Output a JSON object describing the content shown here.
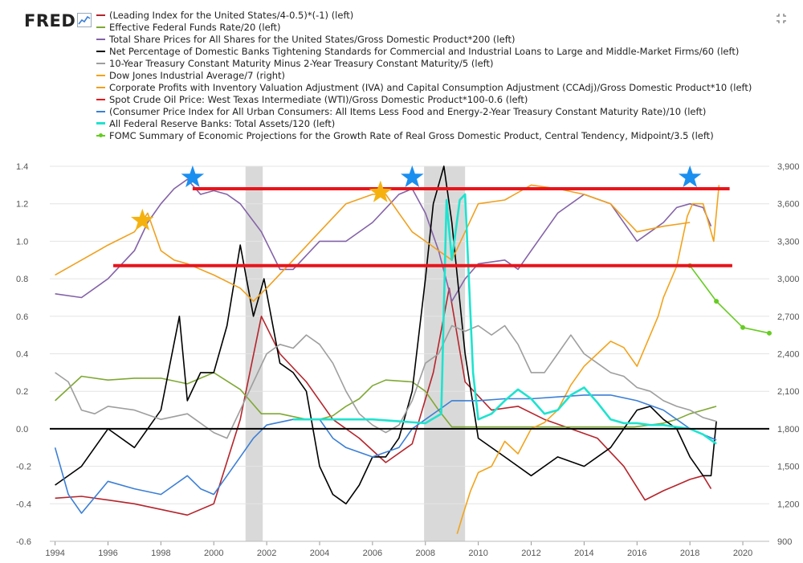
{
  "header": {
    "logo_text": "FRED",
    "logo_icon": "line-chart-icon",
    "fullscreen_icon": "expand-icon"
  },
  "chart_data": {
    "type": "line",
    "x_ticks": [
      "1994",
      "1996",
      "1998",
      "2000",
      "2002",
      "2004",
      "2006",
      "2008",
      "2010",
      "2012",
      "2014",
      "2016",
      "2018",
      "2020"
    ],
    "xlim": [
      1993.8,
      2021.0
    ],
    "left_axis": {
      "ylim": [
        -0.6,
        1.4
      ],
      "ticks": [
        "-0.6",
        "-0.4",
        "-0.2",
        "0.0",
        "0.2",
        "0.4",
        "0.6",
        "0.8",
        "1.0",
        "1.2",
        "1.4"
      ]
    },
    "right_axis": {
      "ylim": [
        900,
        3900
      ],
      "ticks": [
        "900",
        "1,200",
        "1,500",
        "1,800",
        "2,100",
        "2,400",
        "2,700",
        "3,000",
        "3,300",
        "3,600",
        "3,900"
      ]
    },
    "grid": true,
    "legend_position": "top",
    "recessions": [
      [
        2001.2,
        2001.85
      ],
      [
        2007.95,
        2009.5
      ]
    ],
    "annotations": {
      "horizontal_lines": [
        {
          "y": 1.28,
          "x": [
            1999.2,
            2019.5
          ],
          "color": "#e8141b"
        },
        {
          "y": 0.87,
          "x": [
            1996.2,
            2019.6
          ],
          "color": "#e8141b"
        },
        {
          "y": 0.0,
          "x": [
            1993.8,
            2021.0
          ],
          "color": "#000000"
        }
      ],
      "stars": [
        {
          "x": 1997.3,
          "y": 1.11,
          "color": "#f5b20f"
        },
        {
          "x": 1999.2,
          "y": 1.34,
          "color": "#1a8ff0"
        },
        {
          "x": 2006.3,
          "y": 1.26,
          "color": "#f5b20f"
        },
        {
          "x": 2007.5,
          "y": 1.34,
          "color": "#1a8ff0"
        },
        {
          "x": 2018.0,
          "y": 1.34,
          "color": "#1a8ff0"
        }
      ]
    },
    "series": [
      {
        "name": "(Leading Index for the United States/4-0.5)*(-1) (left)",
        "color": "#b5252c",
        "axis": "left",
        "x": [
          1994.0,
          1995.0,
          1996.0,
          1997.0,
          1998.0,
          1999.0,
          2000.0,
          2001.0,
          2001.8,
          2002.5,
          2003.5,
          2004.5,
          2005.5,
          2006.5,
          2007.5,
          2008.3,
          2008.9,
          2009.5,
          2010.5,
          2011.5,
          2012.5,
          2013.5,
          2014.5,
          2015.5,
          2016.3,
          2017.0,
          2017.5,
          2018.0,
          2018.5,
          2018.8
        ],
        "y": [
          -0.37,
          -0.36,
          -0.38,
          -0.4,
          -0.43,
          -0.46,
          -0.4,
          0.05,
          0.6,
          0.4,
          0.25,
          0.05,
          -0.05,
          -0.18,
          -0.08,
          0.3,
          0.75,
          0.25,
          0.1,
          0.12,
          0.05,
          0.0,
          -0.05,
          -0.2,
          -0.38,
          -0.33,
          -0.3,
          -0.27,
          -0.25,
          -0.32
        ]
      },
      {
        "name": "Effective Federal Funds Rate/20 (left)",
        "color": "#7fa833",
        "axis": "left",
        "x": [
          1994.0,
          1995.0,
          1996.0,
          1997.0,
          1998.0,
          1999.0,
          2000.0,
          2001.0,
          2001.8,
          2002.5,
          2003.5,
          2004.0,
          2004.5,
          2005.0,
          2005.5,
          2006.0,
          2006.5,
          2007.5,
          2008.0,
          2008.5,
          2009.0,
          2010.0,
          2012.0,
          2014.0,
          2015.9,
          2016.5,
          2017.0,
          2017.5,
          2018.0,
          2018.5,
          2019.0
        ],
        "y": [
          0.15,
          0.28,
          0.26,
          0.27,
          0.27,
          0.24,
          0.3,
          0.21,
          0.08,
          0.08,
          0.05,
          0.05,
          0.07,
          0.12,
          0.16,
          0.23,
          0.26,
          0.25,
          0.2,
          0.1,
          0.01,
          0.01,
          0.01,
          0.01,
          0.01,
          0.02,
          0.03,
          0.05,
          0.08,
          0.1,
          0.12
        ]
      },
      {
        "name": "Total Share Prices for All Shares for the United States/Gross Domestic Product*200 (left)",
        "color": "#8462a8",
        "axis": "left",
        "x": [
          1994.0,
          1995.0,
          1996.0,
          1997.0,
          1997.5,
          1998.0,
          1998.5,
          1999.0,
          1999.5,
          2000.0,
          2000.5,
          2001.0,
          2001.8,
          2002.5,
          2003.0,
          2004.0,
          2005.0,
          2006.0,
          2007.0,
          2007.5,
          2008.0,
          2008.5,
          2009.0,
          2009.5,
          2010.0,
          2011.0,
          2011.5,
          2012.0,
          2013.0,
          2014.0,
          2015.0,
          2016.0,
          2016.5,
          2017.0,
          2017.5,
          2018.0,
          2018.5,
          2018.8
        ],
        "y": [
          0.72,
          0.7,
          0.8,
          0.95,
          1.1,
          1.2,
          1.28,
          1.33,
          1.25,
          1.27,
          1.25,
          1.2,
          1.05,
          0.85,
          0.85,
          1.0,
          1.0,
          1.1,
          1.25,
          1.28,
          1.15,
          0.95,
          0.68,
          0.8,
          0.88,
          0.9,
          0.85,
          0.95,
          1.15,
          1.25,
          1.2,
          1.0,
          1.05,
          1.1,
          1.18,
          1.2,
          1.18,
          1.08
        ]
      },
      {
        "name": "Net Percentage of Domestic Banks Tightening Standards for Commercial and Industrial Loans to Large and Middle-Market Firms/60 (left)",
        "color": "#000000",
        "axis": "left",
        "x": [
          1994.0,
          1995.0,
          1996.0,
          1997.0,
          1998.0,
          1998.7,
          1999.0,
          1999.5,
          2000.0,
          2000.5,
          2001.0,
          2001.5,
          2001.9,
          2002.5,
          2003.0,
          2003.5,
          2004.0,
          2004.5,
          2005.0,
          2005.5,
          2006.0,
          2006.5,
          2007.0,
          2007.5,
          2008.0,
          2008.3,
          2008.7,
          2009.0,
          2009.5,
          2010.0,
          2011.0,
          2012.0,
          2013.0,
          2014.0,
          2015.0,
          2015.5,
          2016.0,
          2016.5,
          2017.0,
          2017.5,
          2018.0,
          2018.5,
          2018.8,
          2019.0
        ],
        "y": [
          -0.3,
          -0.2,
          0.0,
          -0.1,
          0.1,
          0.6,
          0.15,
          0.3,
          0.3,
          0.55,
          0.98,
          0.6,
          0.8,
          0.35,
          0.3,
          0.2,
          -0.2,
          -0.35,
          -0.4,
          -0.3,
          -0.15,
          -0.15,
          -0.05,
          0.2,
          0.8,
          1.2,
          1.4,
          1.1,
          0.4,
          -0.05,
          -0.15,
          -0.25,
          -0.15,
          -0.2,
          -0.1,
          0.0,
          0.1,
          0.12,
          0.05,
          0.0,
          -0.15,
          -0.25,
          -0.25,
          0.04
        ]
      },
      {
        "name": "10-Year Treasury Constant Maturity Minus 2-Year Treasury Constant Maturity/5 (left)",
        "color": "#9e9e9e",
        "axis": "left",
        "x": [
          1994.0,
          1994.5,
          1995.0,
          1995.5,
          1996.0,
          1997.0,
          1998.0,
          1999.0,
          2000.0,
          2000.5,
          2001.0,
          2001.5,
          2002.0,
          2002.5,
          2003.0,
          2003.5,
          2004.0,
          2004.5,
          2005.0,
          2005.5,
          2006.0,
          2006.5,
          2007.0,
          2007.5,
          2008.0,
          2008.5,
          2009.0,
          2009.5,
          2010.0,
          2010.5,
          2011.0,
          2011.5,
          2012.0,
          2012.5,
          2013.0,
          2013.5,
          2014.0,
          2014.5,
          2015.0,
          2015.5,
          2016.0,
          2016.5,
          2017.0,
          2017.5,
          2018.0,
          2018.5,
          2019.0
        ],
        "y": [
          0.3,
          0.25,
          0.1,
          0.08,
          0.12,
          0.1,
          0.05,
          0.08,
          -0.02,
          -0.05,
          0.1,
          0.25,
          0.4,
          0.45,
          0.43,
          0.5,
          0.45,
          0.35,
          0.2,
          0.08,
          0.02,
          -0.02,
          0.02,
          0.15,
          0.35,
          0.4,
          0.55,
          0.52,
          0.55,
          0.5,
          0.55,
          0.45,
          0.3,
          0.3,
          0.4,
          0.5,
          0.4,
          0.35,
          0.3,
          0.28,
          0.22,
          0.2,
          0.15,
          0.12,
          0.1,
          0.06,
          0.04
        ]
      },
      {
        "name": "Dow Jones Industrial Average/7 (right)",
        "color": "#f2a31b",
        "axis": "right",
        "x": [
          2009.2,
          2009.4,
          2009.7,
          2010.0,
          2010.5,
          2011.0,
          2011.5,
          2012.0,
          2012.5,
          2013.0,
          2013.5,
          2014.0,
          2014.5,
          2015.0,
          2015.5,
          2016.0,
          2016.3,
          2016.8,
          2017.0,
          2017.5,
          2017.9,
          2018.1,
          2018.5,
          2018.9,
          2019.1
        ],
        "y": [
          960,
          1100,
          1300,
          1450,
          1500,
          1700,
          1600,
          1800,
          1850,
          1950,
          2150,
          2300,
          2400,
          2500,
          2450,
          2300,
          2450,
          2700,
          2850,
          3100,
          3500,
          3600,
          3600,
          3300,
          3750
        ]
      },
      {
        "name": "Corporate Profits with Inventory Valuation Adjustment (IVA) and Capital Consumption Adjustment (CCAdj)/Gross Domestic Product*10 (left)",
        "color": "#f0a01e",
        "axis": "left",
        "x": [
          1994.0,
          1995.0,
          1996.0,
          1997.0,
          1997.5,
          1998.0,
          1998.5,
          1999.0,
          2000.0,
          2001.0,
          2001.5,
          2002.0,
          2003.0,
          2004.0,
          2005.0,
          2006.0,
          2006.5,
          2007.0,
          2007.5,
          2008.0,
          2008.5,
          2009.0,
          2009.5,
          2010.0,
          2011.0,
          2012.0,
          2013.0,
          2014.0,
          2015.0,
          2016.0,
          2017.0,
          2018.0
        ],
        "y": [
          0.82,
          0.9,
          0.98,
          1.05,
          1.15,
          0.95,
          0.9,
          0.88,
          0.82,
          0.75,
          0.68,
          0.75,
          0.9,
          1.05,
          1.2,
          1.25,
          1.25,
          1.15,
          1.05,
          1.0,
          0.95,
          0.9,
          1.05,
          1.2,
          1.22,
          1.3,
          1.28,
          1.25,
          1.2,
          1.05,
          1.08,
          1.1
        ]
      },
      {
        "name": "Spot Crude Oil Price: West Texas Intermediate (WTI)/Gross Domestic Product*100-0.6 (left)",
        "color": "#e8141b",
        "axis": "left",
        "x": [
          1996.2,
          2019.6
        ],
        "y": [
          0.87,
          0.87
        ]
      },
      {
        "name": "(Consumer Price Index for All Urban Consumers: All Items Less Food and Energy-2-Year Treasury Constant Maturity Rate)/10 (left)",
        "color": "#3b7fd6",
        "axis": "left",
        "x": [
          1994.0,
          1994.5,
          1995.0,
          1996.0,
          1997.0,
          1998.0,
          1998.5,
          1999.0,
          1999.5,
          2000.0,
          2000.5,
          2001.0,
          2001.5,
          2002.0,
          2003.0,
          2004.0,
          2004.5,
          2005.0,
          2006.0,
          2007.0,
          2007.5,
          2008.0,
          2008.5,
          2009.0,
          2010.0,
          2011.0,
          2012.0,
          2013.0,
          2014.0,
          2015.0,
          2016.0,
          2017.0,
          2017.5,
          2018.0,
          2018.5,
          2019.0
        ],
        "y": [
          -0.1,
          -0.35,
          -0.45,
          -0.28,
          -0.32,
          -0.35,
          -0.3,
          -0.25,
          -0.32,
          -0.35,
          -0.25,
          -0.15,
          -0.05,
          0.02,
          0.05,
          0.05,
          -0.05,
          -0.1,
          -0.15,
          -0.1,
          0.0,
          0.05,
          0.1,
          0.15,
          0.15,
          0.16,
          0.16,
          0.17,
          0.18,
          0.18,
          0.15,
          0.1,
          0.05,
          0.0,
          -0.03,
          -0.06
        ]
      },
      {
        "name": "All Federal Reserve Banks: Total Assets/120 (left)",
        "color": "#1ee3cf",
        "axis": "left",
        "x": [
          2003.0,
          2004.0,
          2005.0,
          2006.0,
          2007.0,
          2008.0,
          2008.6,
          2008.8,
          2009.0,
          2009.3,
          2009.5,
          2009.8,
          2010.0,
          2010.5,
          2011.0,
          2011.5,
          2012.0,
          2012.5,
          2013.0,
          2013.5,
          2014.0,
          2014.5,
          2015.0,
          2015.5,
          2016.0,
          2016.5,
          2017.0,
          2017.5,
          2018.0,
          2018.5,
          2019.0
        ],
        "y": [
          0.05,
          0.05,
          0.05,
          0.05,
          0.04,
          0.03,
          0.08,
          1.22,
          0.9,
          1.22,
          1.25,
          0.3,
          0.05,
          0.08,
          0.15,
          0.21,
          0.16,
          0.08,
          0.1,
          0.18,
          0.22,
          0.14,
          0.05,
          0.03,
          0.03,
          0.02,
          0.02,
          0.01,
          0.0,
          -0.03,
          -0.08
        ]
      },
      {
        "name": "FOMC Summary of Economic Projections for the Growth Rate of Real Gross Domestic Product, Central Tendency, Midpoint/3.5 (left)",
        "color": "#66cc22",
        "axis": "left",
        "markers": true,
        "x": [
          2018.0,
          2019.0,
          2020.0,
          2021.0
        ],
        "y": [
          0.87,
          0.68,
          0.54,
          0.51
        ]
      }
    ]
  }
}
